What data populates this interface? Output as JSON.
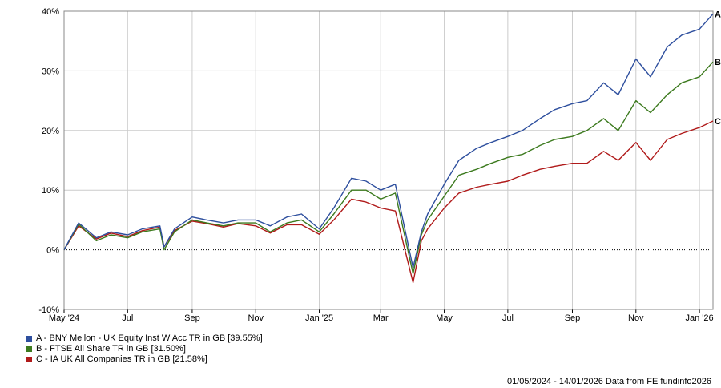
{
  "chart_data": {
    "type": "line",
    "ylim": [
      -10,
      40
    ],
    "y_ticks": [
      -10,
      0,
      10,
      20,
      30,
      40
    ],
    "y_tick_labels": [
      "-10%",
      "0%",
      "10%",
      "20%",
      "30%",
      "40%"
    ],
    "x_range": [
      "2024-05-01",
      "2026-01-14"
    ],
    "x_ticks": [
      "2024-05-01",
      "2024-07-01",
      "2024-09-01",
      "2024-11-01",
      "2025-01-01",
      "2025-03-01",
      "2025-05-01",
      "2025-07-01",
      "2025-09-01",
      "2025-11-01",
      "2026-01-01"
    ],
    "x_tick_labels": [
      "May '24",
      "Jul",
      "Sep",
      "Nov",
      "Jan '25",
      "Mar",
      "May",
      "Jul",
      "Sep",
      "Nov",
      "Jan '26"
    ],
    "grid": true,
    "zero_line": "dotted",
    "x": [
      "2024-05-01",
      "2024-05-15",
      "2024-06-01",
      "2024-06-15",
      "2024-07-01",
      "2024-07-15",
      "2024-08-01",
      "2024-08-05",
      "2024-08-15",
      "2024-09-01",
      "2024-09-15",
      "2024-10-01",
      "2024-10-15",
      "2024-11-01",
      "2024-11-15",
      "2024-12-01",
      "2024-12-15",
      "2025-01-01",
      "2025-01-15",
      "2025-02-01",
      "2025-02-15",
      "2025-03-01",
      "2025-03-15",
      "2025-04-01",
      "2025-04-09",
      "2025-04-15",
      "2025-05-01",
      "2025-05-15",
      "2025-06-01",
      "2025-06-15",
      "2025-07-01",
      "2025-07-15",
      "2025-08-01",
      "2025-08-15",
      "2025-09-01",
      "2025-09-15",
      "2025-10-01",
      "2025-10-15",
      "2025-11-01",
      "2025-11-15",
      "2025-12-01",
      "2025-12-15",
      "2026-01-01",
      "2026-01-14"
    ],
    "series": [
      {
        "label": "A",
        "color": "#2e4f9e",
        "values": [
          0,
          4.5,
          2,
          3,
          2.5,
          3.5,
          4,
          0.5,
          3.5,
          5.5,
          5,
          4.5,
          5,
          5,
          4,
          5.5,
          6,
          3.5,
          7,
          12,
          11.5,
          10,
          11,
          -3,
          3,
          6,
          11,
          15,
          17,
          18,
          19,
          20,
          22,
          23.5,
          24.5,
          25,
          28,
          26,
          32,
          29,
          34,
          36,
          37,
          39.55
        ]
      },
      {
        "label": "B",
        "color": "#3c7a1e",
        "values": [
          0,
          4.3,
          1.5,
          2.5,
          2,
          3,
          3.5,
          0,
          3,
          5,
          4.5,
          4,
          4.5,
          4.5,
          3,
          4.5,
          5,
          3,
          6,
          10,
          10,
          8.5,
          9.5,
          -4,
          2.5,
          5,
          9,
          12.5,
          13.5,
          14.5,
          15.5,
          16,
          17.5,
          18.5,
          19,
          20,
          22,
          20,
          25,
          23,
          26,
          28,
          29,
          31.5
        ]
      },
      {
        "label": "C",
        "color": "#b01a1a",
        "values": [
          0,
          4,
          1.8,
          2.8,
          2.2,
          3.2,
          3.8,
          0.5,
          3.2,
          4.8,
          4.4,
          3.8,
          4.4,
          4,
          2.8,
          4.2,
          4.2,
          2.6,
          5,
          8.5,
          8,
          7,
          6.5,
          -5.5,
          1.5,
          3.5,
          7,
          9.5,
          10.5,
          11,
          11.5,
          12.5,
          13.5,
          14,
          14.5,
          14.5,
          16.5,
          15,
          18,
          15,
          18.5,
          19.5,
          20.5,
          21.58
        ]
      }
    ]
  },
  "legend": [
    {
      "text": "A - BNY Mellon - UK Equity Inst W Acc TR in GB [39.55%]",
      "color": "#2e4f9e"
    },
    {
      "text": "B - FTSE All Share TR in GB [31.50%]",
      "color": "#3c7a1e"
    },
    {
      "text": "C - IA UK All Companies TR in GB [21.58%]",
      "color": "#b01a1a"
    }
  ],
  "footer": "01/05/2024 - 14/01/2026 Data from FE fundinfo2026"
}
